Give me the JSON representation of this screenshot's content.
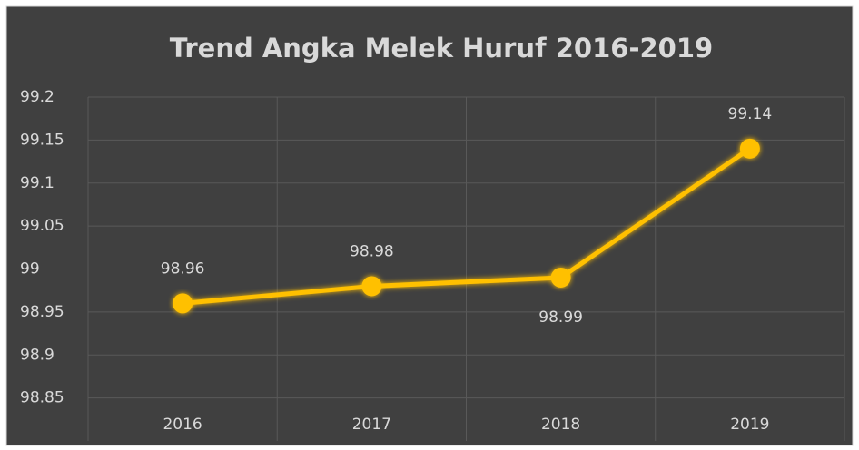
{
  "chart_data": {
    "type": "line",
    "title": "Trend Angka Melek Huruf 2016-2019",
    "categories": [
      "2016",
      "2017",
      "2018",
      "2019"
    ],
    "values": [
      98.96,
      98.98,
      98.99,
      99.14
    ],
    "color": "#ffc000",
    "ylim": [
      98.8,
      99.2
    ],
    "yticks": [
      98.85,
      98.9,
      98.95,
      99,
      99.05,
      99.1,
      99.15,
      99.2
    ],
    "grid": true
  }
}
